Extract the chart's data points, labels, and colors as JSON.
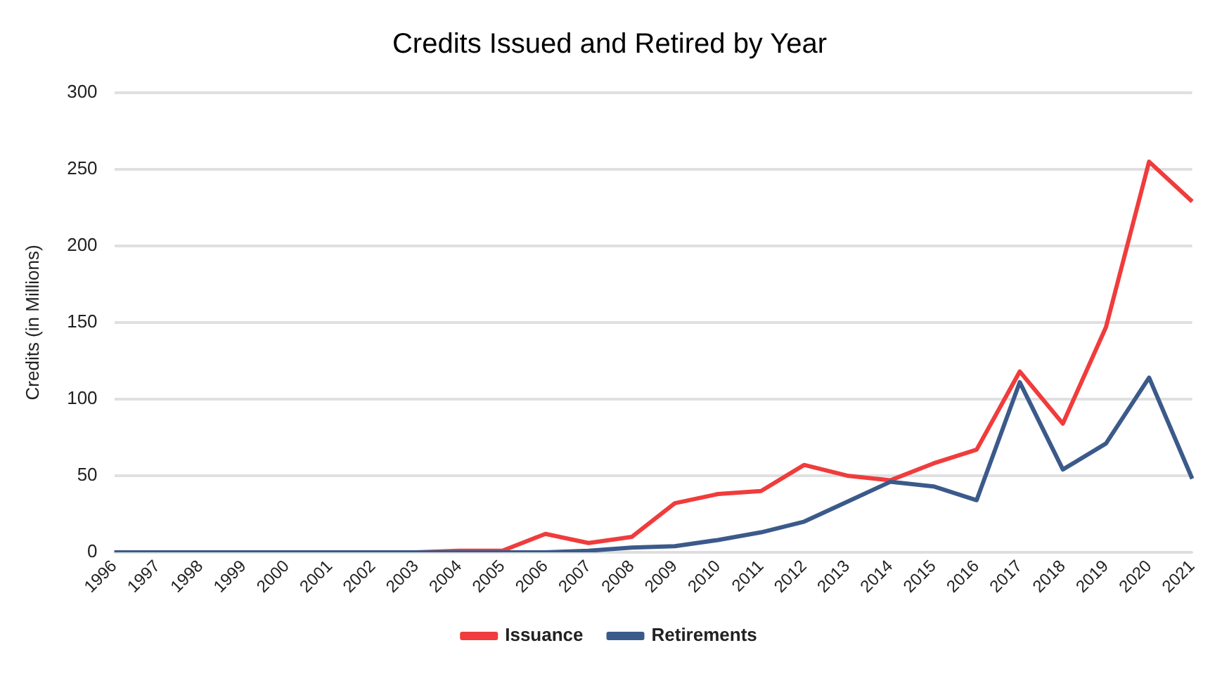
{
  "chart_data": {
    "type": "line",
    "title": "Credits Issued and Retired by Year",
    "ylabel": "Credits (in Millions)",
    "categories": [
      "1996",
      "1997",
      "1998",
      "1999",
      "2000",
      "2001",
      "2002",
      "2003",
      "2004",
      "2005",
      "2006",
      "2007",
      "2008",
      "2009",
      "2010",
      "2011",
      "2012",
      "2013",
      "2014",
      "2015",
      "2016",
      "2017",
      "2018",
      "2019",
      "2020",
      "2021"
    ],
    "series": [
      {
        "name": "Issuance",
        "color": "#f03c3c",
        "values": [
          null,
          null,
          null,
          null,
          null,
          null,
          null,
          0,
          1,
          1,
          12,
          6,
          10,
          32,
          38,
          40,
          57,
          50,
          47,
          58,
          67,
          118,
          84,
          147,
          255,
          229
        ]
      },
      {
        "name": "Retirements",
        "color": "#3b5a8a",
        "values": [
          0,
          0,
          0,
          0,
          0,
          0,
          0,
          0,
          0,
          0,
          0,
          1,
          3,
          4,
          8,
          13,
          20,
          33,
          46,
          43,
          34,
          111,
          54,
          71,
          114,
          48
        ]
      }
    ],
    "ylim": [
      0,
      300
    ],
    "yticks": [
      0,
      50,
      100,
      150,
      200,
      250,
      300
    ],
    "grid": "y",
    "legend": "bottom",
    "marker": "none",
    "line_style": "solid"
  }
}
